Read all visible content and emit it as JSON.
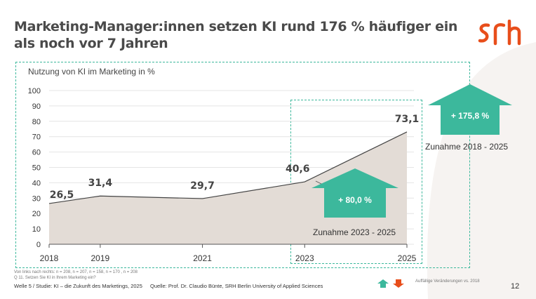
{
  "title": "Marketing-Manager:innen setzen KI rund 176 % häufiger ein als noch vor 7 Jahren",
  "logo_text": "srh",
  "colors": {
    "accent": "#3cb89c",
    "area": "#e3dcd6",
    "line": "#444444",
    "logo": "#e84e1b",
    "down_arrow": "#e84e1b"
  },
  "chart_data": {
    "type": "area",
    "title": "Nutzung von KI im Marketing in %",
    "x": [
      "2018",
      "2019",
      "2021",
      "2023",
      "2025"
    ],
    "x_positions": [
      2018,
      2019,
      2021,
      2023,
      2025
    ],
    "series": [
      {
        "values": [
          26.5,
          31.4,
          29.7,
          40.6,
          73.1
        ]
      }
    ],
    "data_labels": [
      "26,5",
      "31,4",
      "29,7",
      "40,6",
      "73,1"
    ],
    "y_ticks": [
      "0",
      "10",
      "20",
      "30",
      "40",
      "50",
      "60",
      "70",
      "80",
      "90",
      "100"
    ],
    "ylim": [
      0,
      100
    ],
    "xlim": [
      2018,
      2025
    ],
    "grid": true
  },
  "annotations": {
    "increase_long": {
      "value": "+ 175,8  %",
      "label": "Zunahme 2018 - 2025"
    },
    "increase_short": {
      "value": "+ 80,0  %",
      "label": "Zunahme 2023 - 2025"
    }
  },
  "notes": [
    "Von links nach rechts: n = 208, n = 207, n = 158, n = 170 , n = 208",
    "Q 11. Setzen Sie KI in Ihrem Marketing ein?"
  ],
  "footer": {
    "left": "Welle 5 / Studie: KI – die Zukunft des Marketings, 2025",
    "source": "Quelle: Prof. Dr. Claudio Bünte, SRH Berlin University of Applied Sciences",
    "legend": "Auffällige Veränderungen vs. 2018",
    "page": "12"
  }
}
